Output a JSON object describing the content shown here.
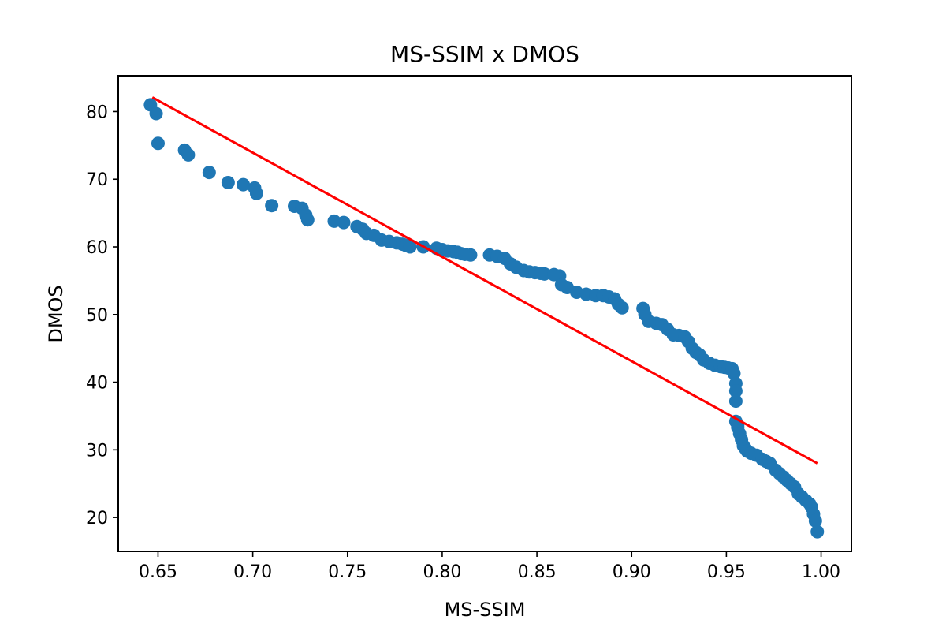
{
  "chart_data": {
    "type": "scatter",
    "title": "MS-SSIM x DMOS",
    "xlabel": "MS-SSIM",
    "ylabel": "DMOS",
    "xlim": [
      0.629,
      1.016
    ],
    "ylim": [
      15.0,
      85.3
    ],
    "xticks": [
      0.65,
      0.7,
      0.75,
      0.8,
      0.85,
      0.9,
      0.95,
      1.0
    ],
    "xtick_labels": [
      "0.65",
      "0.70",
      "0.75",
      "0.80",
      "0.85",
      "0.90",
      "0.95",
      "1.00"
    ],
    "yticks": [
      20,
      30,
      40,
      50,
      60,
      70,
      80
    ],
    "ytick_labels": [
      "20",
      "30",
      "40",
      "50",
      "60",
      "70",
      "80"
    ],
    "grid": false,
    "series": [
      {
        "kind": "scatter",
        "color": "#1f77b4",
        "x": [
          0.646,
          0.649,
          0.65,
          0.664,
          0.666,
          0.677,
          0.687,
          0.695,
          0.701,
          0.702,
          0.71,
          0.722,
          0.726,
          0.728,
          0.729,
          0.743,
          0.748,
          0.755,
          0.758,
          0.76,
          0.764,
          0.768,
          0.772,
          0.776,
          0.779,
          0.781,
          0.783,
          0.79,
          0.797,
          0.8,
          0.803,
          0.806,
          0.808,
          0.81,
          0.812,
          0.815,
          0.825,
          0.829,
          0.833,
          0.836,
          0.839,
          0.843,
          0.846,
          0.849,
          0.852,
          0.854,
          0.859,
          0.862,
          0.863,
          0.866,
          0.871,
          0.876,
          0.881,
          0.885,
          0.888,
          0.891,
          0.893,
          0.895,
          0.906,
          0.907,
          0.909,
          0.913,
          0.916,
          0.919,
          0.922,
          0.925,
          0.928,
          0.93,
          0.932,
          0.934,
          0.936,
          0.938,
          0.941,
          0.944,
          0.947,
          0.949,
          0.951,
          0.953,
          0.954,
          0.955,
          0.955,
          0.955,
          0.955,
          0.956,
          0.956,
          0.957,
          0.958,
          0.959,
          0.96,
          0.961,
          0.963,
          0.966,
          0.969,
          0.971,
          0.973,
          0.976,
          0.978,
          0.98,
          0.982,
          0.984,
          0.986,
          0.988,
          0.99,
          0.992,
          0.994,
          0.995,
          0.996,
          0.997,
          0.998
        ],
        "y": [
          81.0,
          79.7,
          75.3,
          74.3,
          73.6,
          71.0,
          69.5,
          69.2,
          68.7,
          67.9,
          66.1,
          66.0,
          65.7,
          64.7,
          64.0,
          63.8,
          63.6,
          63.0,
          62.6,
          62.0,
          61.7,
          61.0,
          60.8,
          60.6,
          60.4,
          60.2,
          60.0,
          60.0,
          59.8,
          59.6,
          59.4,
          59.3,
          59.2,
          59.0,
          58.9,
          58.8,
          58.8,
          58.6,
          58.3,
          57.5,
          57.0,
          56.5,
          56.3,
          56.2,
          56.1,
          56.0,
          55.9,
          55.7,
          54.4,
          54.0,
          53.3,
          53.0,
          52.8,
          52.8,
          52.6,
          52.3,
          51.5,
          51.0,
          50.9,
          50.0,
          49.0,
          48.7,
          48.5,
          47.8,
          47.0,
          46.9,
          46.7,
          46.0,
          45.0,
          44.4,
          44.0,
          43.3,
          42.8,
          42.5,
          42.3,
          42.2,
          42.1,
          42.0,
          41.3,
          39.8,
          38.7,
          37.2,
          34.2,
          33.7,
          33.3,
          32.4,
          31.5,
          30.6,
          30.2,
          29.8,
          29.5,
          29.2,
          28.6,
          28.3,
          28.0,
          27.0,
          26.5,
          26.0,
          25.5,
          25.0,
          24.5,
          23.5,
          23.0,
          22.5,
          22.0,
          21.5,
          20.5,
          19.5,
          17.9
        ]
      },
      {
        "kind": "line",
        "color": "#ff0000",
        "x": [
          0.647,
          0.998
        ],
        "y": [
          82.1,
          28.0
        ]
      }
    ]
  }
}
